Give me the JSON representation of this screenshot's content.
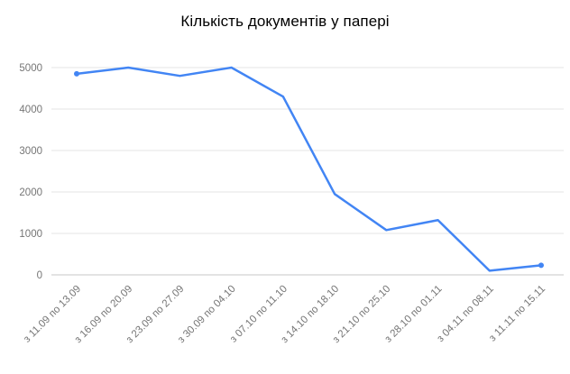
{
  "chart_data": {
    "type": "line",
    "title": "Кількість документів у папері",
    "categories": [
      "з 11.09 по 13.09",
      "з 16.09 по 20.09",
      "з 23.09 по 27.09",
      "з 30.09 по 04.10",
      "з 07.10 по 11.10",
      "з 14.10 по 18.10",
      "з 21.10 по 25.10",
      "з 28.10 по 01.11",
      "з 04.11 по 08.11",
      "з 11.11 по 15.11"
    ],
    "values": [
      4850,
      5000,
      4800,
      5000,
      4300,
      1950,
      1080,
      1320,
      100,
      230
    ],
    "xlabel": "",
    "ylabel": "",
    "ylim": [
      0,
      5000
    ],
    "yticks": [
      0,
      1000,
      2000,
      3000,
      4000,
      5000
    ],
    "grid": true,
    "legend": "none",
    "colors": {
      "line": "#4285f4",
      "grid": "#e6e6e6",
      "baseline": "#c7c7c7",
      "axis_text": "#757575",
      "title_text": "#000000"
    }
  }
}
